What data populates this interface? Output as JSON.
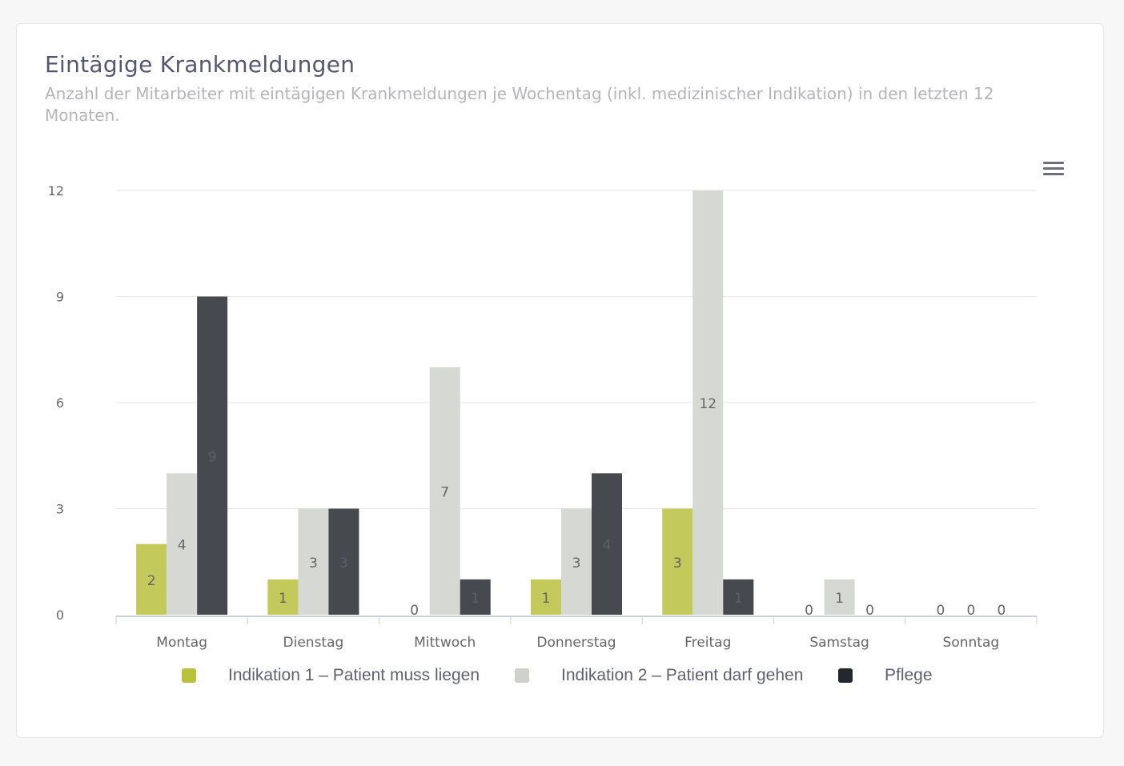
{
  "header": {
    "title": "Eintägige Krankmeldungen",
    "subtitle": "Anzahl der Mitarbeiter mit eintägigen Krankmeldungen je Wochentag (inkl. medizinischer Indikation) in den letzten 12 Monaten.",
    "menu_icon": "hamburger-menu-icon"
  },
  "chart_data": {
    "type": "bar",
    "categories": [
      "Montag",
      "Dienstag",
      "Mittwoch",
      "Donnerstag",
      "Freitag",
      "Samstag",
      "Sonntag"
    ],
    "series": [
      {
        "name": "Indikation 1 – Patient muss liegen",
        "color": "#c3c95a",
        "legend_color": "#b8c23a",
        "values": [
          2,
          1,
          0,
          1,
          3,
          0,
          0
        ]
      },
      {
        "name": "Indikation 2 – Patient darf gehen",
        "color": "#d6d8d3",
        "legend_color": "#cfd1cc",
        "values": [
          4,
          3,
          7,
          3,
          12,
          1,
          0
        ]
      },
      {
        "name": "Pflege",
        "color": "#46494e",
        "legend_color": "#24272b",
        "values": [
          9,
          3,
          1,
          4,
          1,
          0,
          0
        ]
      }
    ],
    "ylim": [
      0,
      12
    ],
    "yticks": [
      0,
      3,
      6,
      9,
      12
    ],
    "grid": true,
    "data_labels": true,
    "legend": "bottom"
  }
}
